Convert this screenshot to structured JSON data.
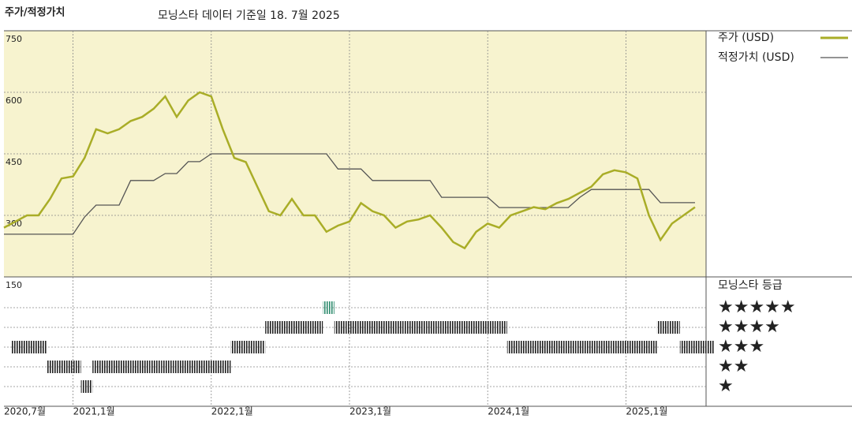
{
  "chart_data": {
    "type": "line",
    "title": "주가/적정가치",
    "subtitle": "모닝스타 데이터 기준일 18. 7월 2025",
    "x": [
      "2020-07",
      "2020-08",
      "2020-09",
      "2020-10",
      "2020-11",
      "2020-12",
      "2021-01",
      "2021-02",
      "2021-03",
      "2021-04",
      "2021-05",
      "2021-06",
      "2021-07",
      "2021-08",
      "2021-09",
      "2021-10",
      "2021-11",
      "2021-12",
      "2022-01",
      "2022-02",
      "2022-03",
      "2022-04",
      "2022-05",
      "2022-06",
      "2022-07",
      "2022-08",
      "2022-09",
      "2022-10",
      "2022-11",
      "2022-12",
      "2023-01",
      "2023-02",
      "2023-03",
      "2023-04",
      "2023-05",
      "2023-06",
      "2023-07",
      "2023-08",
      "2023-09",
      "2023-10",
      "2023-11",
      "2023-12",
      "2024-01",
      "2024-02",
      "2024-03",
      "2024-04",
      "2024-05",
      "2024-06",
      "2024-07",
      "2024-08",
      "2024-09",
      "2024-10",
      "2024-11",
      "2024-12",
      "2025-01",
      "2025-02",
      "2025-03",
      "2025-04",
      "2025-05",
      "2025-06",
      "2025-07"
    ],
    "series": [
      {
        "name": "주가 (USD)",
        "color": "#a9ad27",
        "values": [
          270,
          285,
          300,
          300,
          340,
          390,
          395,
          440,
          510,
          500,
          510,
          530,
          540,
          560,
          590,
          540,
          580,
          600,
          590,
          510,
          440,
          430,
          370,
          310,
          300,
          340,
          300,
          300,
          260,
          275,
          285,
          330,
          310,
          300,
          270,
          285,
          290,
          300,
          270,
          235,
          220,
          260,
          280,
          270,
          300,
          310,
          320,
          315,
          330,
          340,
          355,
          370,
          400,
          410,
          405,
          390,
          300,
          240,
          280,
          300,
          320
        ]
      },
      {
        "name": "적정가치 (USD)",
        "color": "#555555",
        "values": [
          254,
          254,
          254,
          254,
          254,
          254,
          254,
          296,
          325,
          325,
          325,
          385,
          385,
          385,
          402,
          402,
          431,
          431,
          450,
          450,
          450,
          450,
          450,
          450,
          450,
          450,
          450,
          450,
          450,
          413,
          413,
          413,
          385,
          385,
          385,
          385,
          385,
          385,
          344,
          344,
          344,
          344,
          344,
          319,
          319,
          319,
          319,
          319,
          319,
          319,
          344,
          363,
          363,
          363,
          363,
          363,
          363,
          331,
          331,
          331,
          331
        ]
      }
    ],
    "ylim": [
      150,
      750
    ],
    "yticks": [
      150,
      300,
      450,
      600,
      750
    ],
    "xticks": [
      {
        "value": "2020-07",
        "label": "2020,7월"
      },
      {
        "value": "2021-01",
        "label": "2021,1월"
      },
      {
        "value": "2022-01",
        "label": "2022,1월"
      },
      {
        "value": "2023-01",
        "label": "2023,1월"
      },
      {
        "value": "2024-01",
        "label": "2024,1월"
      },
      {
        "value": "2025-01",
        "label": "2025,1월"
      }
    ],
    "grid": true,
    "rating": {
      "title": "모닝스타 등급",
      "levels": [
        "★",
        "★★",
        "★★★",
        "★★★★",
        "★★★★★"
      ],
      "values": [
        3,
        3,
        3,
        2,
        2,
        2,
        1,
        2,
        2,
        2,
        2,
        2,
        2,
        2,
        2,
        2,
        2,
        2,
        2,
        3,
        3,
        3,
        4,
        4,
        4,
        4,
        4,
        5,
        4,
        4,
        4,
        4,
        4,
        4,
        4,
        4,
        4,
        4,
        4,
        4,
        4,
        4,
        4,
        3,
        3,
        3,
        3,
        3,
        3,
        3,
        3,
        3,
        3,
        3,
        3,
        3,
        4,
        4,
        3,
        3,
        3
      ],
      "color": "#222222",
      "top_color": "#2e8b6e"
    }
  }
}
